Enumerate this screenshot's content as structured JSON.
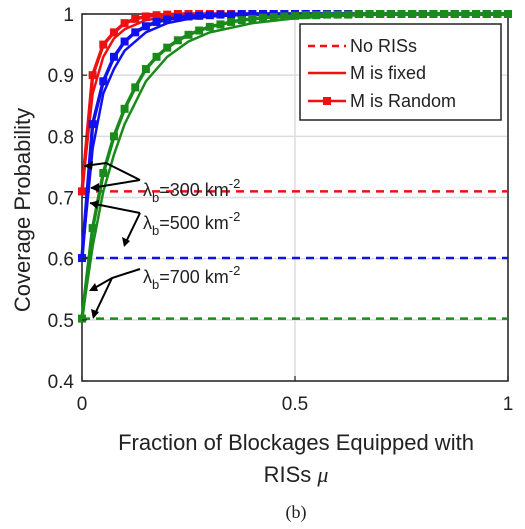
{
  "chart_data": {
    "type": "line",
    "xlabel_line1": "Fraction of Blockages Equipped with",
    "xlabel_line2": "RISs",
    "xlabel_symbol": "μ",
    "ylabel": "Coverage Probability",
    "caption": "(b)",
    "xlim": [
      0,
      1
    ],
    "ylim": [
      0.4,
      1
    ],
    "x_ticks": [
      0,
      0.5,
      1
    ],
    "y_ticks": [
      0.4,
      0.5,
      0.6,
      0.7,
      0.8,
      0.9,
      1
    ],
    "x_tick_labels": [
      "0",
      "0.5",
      "1"
    ],
    "y_tick_labels": [
      "0.4",
      "0.5",
      "0.6",
      "0.7",
      "0.8",
      "0.9",
      "1"
    ],
    "grid": true,
    "legend_position": "top-right",
    "legend": [
      {
        "label": "No RISs",
        "style": "dashed"
      },
      {
        "label": "M is fixed",
        "style": "solid"
      },
      {
        "label": "M is Random",
        "style": "solid-square"
      }
    ],
    "colors": {
      "red": "#ee1111",
      "blue": "#1111ee",
      "green": "#1a8a1a",
      "grid": "#dddddd",
      "axis": "#222222"
    },
    "annotations": [
      {
        "sym": "λ",
        "sub": "b",
        "text": "=300 km",
        "sup": "-2"
      },
      {
        "sym": "λ",
        "sub": "b",
        "text": "=500 km",
        "sup": "-2"
      },
      {
        "sym": "λ",
        "sub": "b",
        "text": "=700 km",
        "sup": "-2"
      }
    ],
    "series": [
      {
        "color": "red",
        "kind": "baseline",
        "x": [
          0,
          1
        ],
        "y": [
          0.71,
          0.71
        ]
      },
      {
        "color": "blue",
        "kind": "baseline",
        "x": [
          0,
          1
        ],
        "y": [
          0.601,
          0.601
        ]
      },
      {
        "color": "green",
        "kind": "baseline",
        "x": [
          0,
          1
        ],
        "y": [
          0.502,
          0.502
        ]
      },
      {
        "color": "red",
        "kind": "fixed",
        "x": [
          0,
          0.025,
          0.05,
          0.075,
          0.1,
          0.15,
          0.2,
          0.25,
          0.3,
          0.4,
          0.5,
          0.6,
          0.7,
          0.8,
          0.9,
          1
        ],
        "y": [
          0.71,
          0.87,
          0.93,
          0.96,
          0.975,
          0.99,
          0.995,
          0.998,
          0.999,
          1,
          1,
          1,
          1,
          1,
          1,
          1
        ]
      },
      {
        "color": "blue",
        "kind": "fixed",
        "x": [
          0,
          0.025,
          0.05,
          0.075,
          0.1,
          0.15,
          0.2,
          0.25,
          0.3,
          0.4,
          0.5,
          0.6,
          0.7,
          0.8,
          0.9,
          1
        ],
        "y": [
          0.601,
          0.78,
          0.87,
          0.91,
          0.94,
          0.97,
          0.985,
          0.992,
          0.996,
          0.999,
          1,
          1,
          1,
          1,
          1,
          1
        ]
      },
      {
        "color": "green",
        "kind": "fixed",
        "x": [
          0,
          0.025,
          0.05,
          0.075,
          0.1,
          0.15,
          0.2,
          0.25,
          0.3,
          0.4,
          0.5,
          0.6,
          0.7,
          0.8,
          0.9,
          1
        ],
        "y": [
          0.502,
          0.62,
          0.71,
          0.77,
          0.82,
          0.89,
          0.93,
          0.955,
          0.97,
          0.985,
          0.993,
          0.997,
          0.999,
          1,
          1,
          1
        ]
      },
      {
        "color": "red",
        "kind": "random",
        "x": [
          0,
          0.025,
          0.05,
          0.075,
          0.1,
          0.125,
          0.15,
          0.175,
          0.2,
          0.225,
          0.25,
          0.275,
          0.3,
          0.325,
          0.35,
          0.375,
          0.4,
          0.425,
          0.45,
          0.475,
          0.5,
          0.525,
          0.55,
          0.575,
          0.6,
          0.625,
          0.65,
          0.675,
          0.7,
          0.725,
          0.75,
          0.775,
          0.8,
          0.825,
          0.85,
          0.875,
          0.9,
          0.925,
          0.95,
          0.975,
          1
        ],
        "y": [
          0.71,
          0.9,
          0.95,
          0.97,
          0.985,
          0.992,
          0.996,
          0.998,
          0.999,
          1,
          1,
          1,
          1,
          1,
          1,
          1,
          1,
          1,
          1,
          1,
          1,
          1,
          1,
          1,
          1,
          1,
          1,
          1,
          1,
          1,
          1,
          1,
          1,
          1,
          1,
          1,
          1,
          1,
          1,
          1,
          1
        ]
      },
      {
        "color": "blue",
        "kind": "random",
        "x": [
          0,
          0.025,
          0.05,
          0.075,
          0.1,
          0.125,
          0.15,
          0.175,
          0.2,
          0.225,
          0.25,
          0.275,
          0.3,
          0.325,
          0.35,
          0.375,
          0.4,
          0.425,
          0.45,
          0.475,
          0.5,
          0.525,
          0.55,
          0.575,
          0.6,
          0.625,
          0.65,
          0.675,
          0.7,
          0.725,
          0.75,
          0.775,
          0.8,
          0.825,
          0.85,
          0.875,
          0.9,
          0.925,
          0.95,
          0.975,
          1
        ],
        "y": [
          0.601,
          0.82,
          0.89,
          0.93,
          0.955,
          0.97,
          0.98,
          0.987,
          0.991,
          0.994,
          0.996,
          0.997,
          0.998,
          0.999,
          0.999,
          1,
          1,
          1,
          1,
          1,
          1,
          1,
          1,
          1,
          1,
          1,
          1,
          1,
          1,
          1,
          1,
          1,
          1,
          1,
          1,
          1,
          1,
          1,
          1,
          1,
          1
        ]
      },
      {
        "color": "green",
        "kind": "random",
        "x": [
          0,
          0.025,
          0.05,
          0.075,
          0.1,
          0.125,
          0.15,
          0.175,
          0.2,
          0.225,
          0.25,
          0.275,
          0.3,
          0.325,
          0.35,
          0.375,
          0.4,
          0.425,
          0.45,
          0.475,
          0.5,
          0.525,
          0.55,
          0.575,
          0.6,
          0.625,
          0.65,
          0.675,
          0.7,
          0.725,
          0.75,
          0.775,
          0.8,
          0.825,
          0.85,
          0.875,
          0.9,
          0.925,
          0.95,
          0.975,
          1
        ],
        "y": [
          0.502,
          0.65,
          0.74,
          0.8,
          0.845,
          0.88,
          0.91,
          0.93,
          0.945,
          0.957,
          0.966,
          0.973,
          0.979,
          0.983,
          0.987,
          0.99,
          0.992,
          0.994,
          0.995,
          0.996,
          0.997,
          0.998,
          0.998,
          0.999,
          0.999,
          0.999,
          1,
          1,
          1,
          1,
          1,
          1,
          1,
          1,
          1,
          1,
          1,
          1,
          1,
          1,
          1
        ]
      }
    ]
  }
}
